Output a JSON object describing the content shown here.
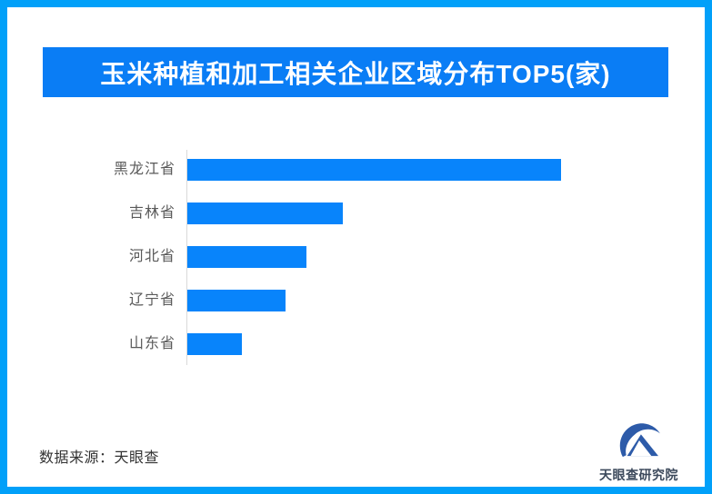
{
  "frame": {
    "border_color": "#01A0F9",
    "background": "#FFFFFF"
  },
  "header": {
    "title": "玉米种植和加工相关企业区域分布TOP5(家)",
    "bg_color": "#0A7DF5",
    "text_color": "#FFFFFF"
  },
  "chart_data": {
    "type": "bar",
    "orientation": "horizontal",
    "title": "玉米种植和加工相关企业区域分布TOP5(家)",
    "categories": [
      "黑龙江省",
      "吉林省",
      "河北省",
      "辽宁省",
      "山东省"
    ],
    "values_pct_of_max": [
      100,
      41.6,
      31.9,
      26.3,
      14.6
    ],
    "value_labels_shown": false,
    "xlabel": "",
    "ylabel": "",
    "legend": "none",
    "grid": "off",
    "bar_color": "#0884FB",
    "axis_line_color": "#D9D9D9",
    "category_label_color": "#595959"
  },
  "footer": {
    "source_label": "数据来源：天眼查"
  },
  "logo": {
    "icon_name": "tianyancha-logo-icon",
    "icon_color": "#2D5BA9",
    "label": "天眼查研究院",
    "label_color": "#3D4A5C"
  }
}
